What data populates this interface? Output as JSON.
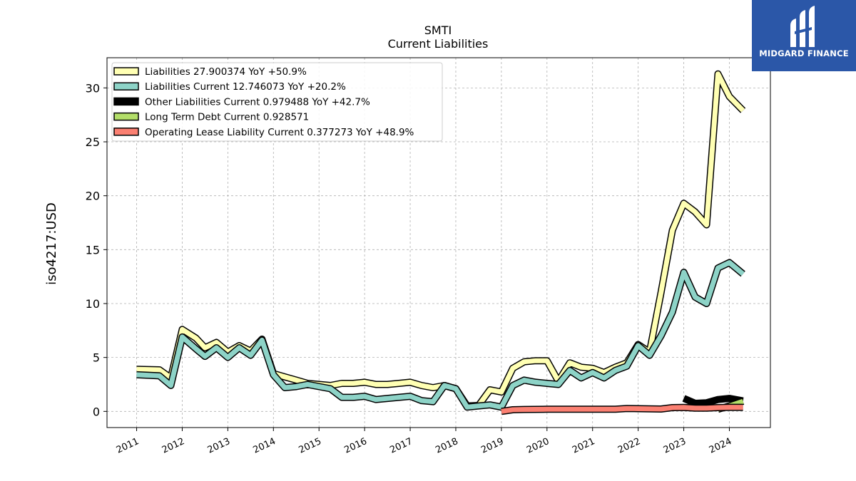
{
  "logo": {
    "text": "MIDGARD FINANCE",
    "icon": "midgard-logo-icon",
    "background": "#2b57a8"
  },
  "chart_data": {
    "type": "line",
    "title": "SMTI",
    "subtitle": "Current  Liabilities",
    "xlabel": "",
    "ylabel": "iso4217:USD",
    "xlim": [
      2010.35,
      2024.9
    ],
    "ylim": [
      -1.5,
      32.8
    ],
    "grid": true,
    "legend_position": "top-left",
    "x_ticks": [
      {
        "value": 2011,
        "label": "2011"
      },
      {
        "value": 2012,
        "label": "2012"
      },
      {
        "value": 2013,
        "label": "2013"
      },
      {
        "value": 2014,
        "label": "2014"
      },
      {
        "value": 2015,
        "label": "2015"
      },
      {
        "value": 2016,
        "label": "2016"
      },
      {
        "value": 2017,
        "label": "2017"
      },
      {
        "value": 2018,
        "label": "2018"
      },
      {
        "value": 2019,
        "label": "2019"
      },
      {
        "value": 2020,
        "label": "2020"
      },
      {
        "value": 2021,
        "label": "2021"
      },
      {
        "value": 2022,
        "label": "2022"
      },
      {
        "value": 2023,
        "label": "2023"
      },
      {
        "value": 2024,
        "label": "2024"
      }
    ],
    "y_ticks": [
      {
        "value": 0,
        "label": "0"
      },
      {
        "value": 5,
        "label": "5"
      },
      {
        "value": 10,
        "label": "10"
      },
      {
        "value": 15,
        "label": "15"
      },
      {
        "value": 20,
        "label": "20"
      },
      {
        "value": 25,
        "label": "25"
      },
      {
        "value": 30,
        "label": "30"
      }
    ],
    "series": [
      {
        "name": "Liabilities  27.900374 YoY +50.9%",
        "color": "#ffffb3",
        "width": 7,
        "points": [
          [
            2011.0,
            3.9
          ],
          [
            2011.5,
            3.85
          ],
          [
            2011.75,
            3.1
          ],
          [
            2012.0,
            7.6
          ],
          [
            2012.3,
            6.8
          ],
          [
            2012.5,
            5.9
          ],
          [
            2012.75,
            6.4
          ],
          [
            2013.0,
            5.5
          ],
          [
            2013.25,
            6.1
          ],
          [
            2013.5,
            5.6
          ],
          [
            2013.75,
            6.7
          ],
          [
            2014.0,
            3.5
          ],
          [
            2014.25,
            3.2
          ],
          [
            2014.5,
            2.9
          ],
          [
            2014.75,
            2.6
          ],
          [
            2015.0,
            2.5
          ],
          [
            2015.25,
            2.4
          ],
          [
            2015.5,
            2.6
          ],
          [
            2015.75,
            2.6
          ],
          [
            2016.0,
            2.7
          ],
          [
            2016.25,
            2.5
          ],
          [
            2016.5,
            2.5
          ],
          [
            2016.75,
            2.6
          ],
          [
            2017.0,
            2.7
          ],
          [
            2017.25,
            2.4
          ],
          [
            2017.5,
            2.2
          ],
          [
            2017.75,
            2.4
          ],
          [
            2018.0,
            2.1
          ],
          [
            2018.25,
            0.5
          ],
          [
            2018.5,
            0.55
          ],
          [
            2018.75,
            2.0
          ],
          [
            2019.0,
            1.8
          ],
          [
            2019.25,
            4.0
          ],
          [
            2019.5,
            4.6
          ],
          [
            2019.75,
            4.7
          ],
          [
            2020.0,
            4.7
          ],
          [
            2020.25,
            2.8
          ],
          [
            2020.5,
            4.5
          ],
          [
            2020.75,
            4.1
          ],
          [
            2021.0,
            4.0
          ],
          [
            2021.25,
            3.6
          ],
          [
            2021.5,
            4.1
          ],
          [
            2021.75,
            4.5
          ],
          [
            2022.0,
            6.2
          ],
          [
            2022.25,
            5.5
          ],
          [
            2022.5,
            11.0
          ],
          [
            2022.75,
            16.8
          ],
          [
            2023.0,
            19.3
          ],
          [
            2023.25,
            18.5
          ],
          [
            2023.5,
            17.3
          ],
          [
            2023.75,
            31.3
          ],
          [
            2024.0,
            29.2
          ],
          [
            2024.3,
            27.9
          ]
        ]
      },
      {
        "name": "Liabilities Current  12.746073 YoY +20.2%",
        "color": "#8dd3c7",
        "width": 7,
        "points": [
          [
            2011.0,
            3.4
          ],
          [
            2011.5,
            3.3
          ],
          [
            2011.75,
            2.4
          ],
          [
            2012.0,
            6.9
          ],
          [
            2012.3,
            5.8
          ],
          [
            2012.5,
            5.1
          ],
          [
            2012.75,
            5.9
          ],
          [
            2013.0,
            5.0
          ],
          [
            2013.25,
            5.9
          ],
          [
            2013.5,
            5.2
          ],
          [
            2013.75,
            6.6
          ],
          [
            2014.0,
            3.4
          ],
          [
            2014.25,
            2.2
          ],
          [
            2014.5,
            2.3
          ],
          [
            2014.75,
            2.5
          ],
          [
            2015.0,
            2.3
          ],
          [
            2015.25,
            2.1
          ],
          [
            2015.5,
            1.3
          ],
          [
            2015.75,
            1.3
          ],
          [
            2016.0,
            1.4
          ],
          [
            2016.25,
            1.1
          ],
          [
            2016.5,
            1.2
          ],
          [
            2016.75,
            1.3
          ],
          [
            2017.0,
            1.4
          ],
          [
            2017.25,
            1.0
          ],
          [
            2017.5,
            0.9
          ],
          [
            2017.75,
            2.4
          ],
          [
            2018.0,
            2.1
          ],
          [
            2018.25,
            0.4
          ],
          [
            2018.5,
            0.5
          ],
          [
            2018.75,
            0.6
          ],
          [
            2019.0,
            0.4
          ],
          [
            2019.25,
            2.4
          ],
          [
            2019.5,
            2.9
          ],
          [
            2019.75,
            2.7
          ],
          [
            2020.0,
            2.6
          ],
          [
            2020.25,
            2.5
          ],
          [
            2020.5,
            3.8
          ],
          [
            2020.75,
            3.1
          ],
          [
            2021.0,
            3.6
          ],
          [
            2021.25,
            3.1
          ],
          [
            2021.5,
            3.8
          ],
          [
            2021.75,
            4.2
          ],
          [
            2022.0,
            6.1
          ],
          [
            2022.25,
            5.2
          ],
          [
            2022.5,
            7.0
          ],
          [
            2022.75,
            9.2
          ],
          [
            2023.0,
            12.9
          ],
          [
            2023.25,
            10.6
          ],
          [
            2023.5,
            10.0
          ],
          [
            2023.75,
            13.3
          ],
          [
            2024.0,
            13.8
          ],
          [
            2024.3,
            12.75
          ]
        ]
      },
      {
        "name": "Other Liabilities Current  0.979488 YoY +42.7%",
        "color": "#000000",
        "width": 7,
        "points": [
          [
            2023.0,
            1.2
          ],
          [
            2023.25,
            0.75
          ],
          [
            2023.5,
            0.8
          ],
          [
            2023.75,
            1.1
          ],
          [
            2024.0,
            1.2
          ],
          [
            2024.3,
            0.98
          ]
        ]
      },
      {
        "name": "Long Term Debt Current  0.928571",
        "color": "#b3de69",
        "width": 7,
        "points": [
          [
            2023.75,
            0.2
          ],
          [
            2024.0,
            0.5
          ],
          [
            2024.3,
            0.93
          ]
        ]
      },
      {
        "name": "Operating Lease Liability Current  0.377273 YoY +48.9%",
        "color": "#fb8072",
        "width": 7,
        "points": [
          [
            2019.0,
            0.0
          ],
          [
            2019.25,
            0.15
          ],
          [
            2019.5,
            0.18
          ],
          [
            2020.0,
            0.2
          ],
          [
            2020.5,
            0.2
          ],
          [
            2021.0,
            0.2
          ],
          [
            2021.5,
            0.2
          ],
          [
            2021.75,
            0.27
          ],
          [
            2022.0,
            0.25
          ],
          [
            2022.5,
            0.22
          ],
          [
            2022.75,
            0.35
          ],
          [
            2023.0,
            0.37
          ],
          [
            2023.25,
            0.3
          ],
          [
            2023.5,
            0.3
          ],
          [
            2023.75,
            0.35
          ],
          [
            2024.0,
            0.38
          ],
          [
            2024.3,
            0.38
          ]
        ]
      }
    ]
  }
}
